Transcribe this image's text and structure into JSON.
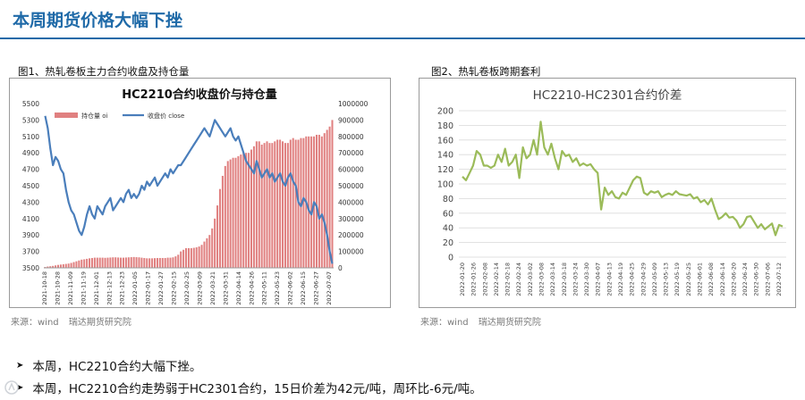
{
  "page": {
    "title": "本周期货价格大幅下挫"
  },
  "figures": {
    "left": {
      "caption": "图1、热轧卷板主力合约收盘及持仓量",
      "source_label": "来源：wind",
      "source_org": "瑞达期货研究院"
    },
    "right": {
      "caption": "图2、热轧卷板跨期套利",
      "source_label": "来源：wind",
      "source_org": "瑞达期货研究院"
    }
  },
  "bullets": [
    "本周，HC2210合约大幅下挫。",
    "本周，HC2210合约走势弱于HC2301合约，15日价差为42元/吨，周环比-6元/吨。"
  ],
  "colors": {
    "title_blue": "#1f6aa8",
    "close_line": "#4a7ebb",
    "oi_bar": "#e08080",
    "spread_line": "#9bbb59"
  },
  "chart_data": [
    {
      "type": "bar",
      "title": "HC2210合约收盘价与持仓量",
      "legend": {
        "position": "top-left",
        "items": [
          "持仓量 oi",
          "收盘价 close"
        ]
      },
      "y_left": {
        "ticks": [
          "3500",
          "3700",
          "3900",
          "4100",
          "4300",
          "4500",
          "4700",
          "4900",
          "5100",
          "5300",
          "5500"
        ],
        "ylim": [
          3500,
          5500
        ]
      },
      "y_right": {
        "ticks": [
          "0",
          "100000",
          "200000",
          "300000",
          "400000",
          "500000",
          "600000",
          "700000",
          "800000",
          "900000",
          "1000000"
        ],
        "ylim": [
          0,
          1000000
        ]
      },
      "x_ticks": [
        "2021-10-18",
        "2021-10-28",
        "2021-11-09",
        "2021-11-19",
        "2021-12-01",
        "2021-12-13",
        "2021-12-23",
        "2022-01-05",
        "2022-01-17",
        "2022-01-27",
        "2022-02-15",
        "2022-02-25",
        "2022-03-09",
        "2022-03-21",
        "2022-03-31",
        "2022-04-14",
        "2022-04-26",
        "2022-05-11",
        "2022-05-23",
        "2022-06-02",
        "2022-06-15",
        "2022-06-27",
        "2022-07-07"
      ],
      "grid": false,
      "series": [
        {
          "name": "持仓量 oi",
          "type": "bar",
          "axis": "right",
          "values": [
            5000,
            8000,
            10000,
            12000,
            15000,
            18000,
            20000,
            22000,
            24000,
            26000,
            30000,
            35000,
            40000,
            45000,
            50000,
            52000,
            55000,
            58000,
            60000,
            62000,
            62000,
            62000,
            62000,
            61000,
            62000,
            63000,
            64000,
            64000,
            63000,
            62000,
            62000,
            63000,
            64000,
            65000,
            66000,
            65000,
            64000,
            62000,
            60000,
            58000,
            58000,
            58000,
            59000,
            60000,
            60000,
            60000,
            60000,
            62000,
            62000,
            64000,
            70000,
            80000,
            100000,
            110000,
            120000,
            120000,
            120000,
            122000,
            125000,
            130000,
            140000,
            160000,
            180000,
            200000,
            240000,
            300000,
            380000,
            480000,
            560000,
            620000,
            650000,
            660000,
            670000,
            670000,
            680000,
            690000,
            700000,
            700000,
            700000,
            720000,
            740000,
            770000,
            770000,
            750000,
            760000,
            770000,
            760000,
            760000,
            770000,
            780000,
            780000,
            770000,
            760000,
            760000,
            780000,
            790000,
            780000,
            780000,
            790000,
            790000,
            800000,
            800000,
            800000,
            800000,
            810000,
            810000,
            800000,
            820000,
            840000,
            860000,
            900000
          ]
        },
        {
          "name": "收盘价 close",
          "type": "line",
          "axis": "left",
          "values": [
            5350,
            5200,
            4950,
            4750,
            4850,
            4800,
            4700,
            4650,
            4450,
            4300,
            4200,
            4150,
            4050,
            3950,
            3900,
            4000,
            4150,
            4250,
            4150,
            4100,
            4250,
            4200,
            4150,
            4250,
            4300,
            4350,
            4200,
            4250,
            4300,
            4350,
            4300,
            4400,
            4450,
            4350,
            4400,
            4350,
            4400,
            4500,
            4450,
            4550,
            4500,
            4550,
            4600,
            4500,
            4550,
            4600,
            4650,
            4600,
            4700,
            4650,
            4700,
            4750,
            4750,
            4800,
            4850,
            4900,
            4950,
            5000,
            5050,
            5100,
            5150,
            5200,
            5150,
            5100,
            5200,
            5300,
            5250,
            5200,
            5150,
            5100,
            5150,
            5200,
            5100,
            5050,
            5100,
            5000,
            4900,
            4800,
            4750,
            4700,
            4650,
            4800,
            4700,
            4600,
            4650,
            4700,
            4600,
            4650,
            4550,
            4600,
            4650,
            4550,
            4500,
            4600,
            4650,
            4550,
            4500,
            4300,
            4250,
            4350,
            4300,
            4200,
            4150,
            4300,
            4250,
            4100,
            4150,
            4050,
            3900,
            3700,
            3550
          ]
        }
      ]
    },
    {
      "type": "line",
      "title": "HC2210-HC2301合约价差",
      "y_ticks": [
        "0",
        "20",
        "40",
        "60",
        "80",
        "100",
        "120",
        "140",
        "160",
        "180",
        "200"
      ],
      "ylim": [
        0,
        200
      ],
      "x_ticks": [
        "2022-01-20",
        "2022-01-26",
        "2022-02-08",
        "2022-02-14",
        "2022-02-18",
        "2022-02-24",
        "2022-03-02",
        "2022-03-08",
        "2022-03-14",
        "2022-03-18",
        "2022-03-24",
        "2022-03-30",
        "2022-04-07",
        "2022-04-13",
        "2022-04-19",
        "2022-04-25",
        "2022-04-29",
        "2022-05-09",
        "2022-05-13",
        "2022-05-19",
        "2022-05-25",
        "2022-06-01",
        "2022-06-08",
        "2022-06-14",
        "2022-06-20",
        "2022-06-24",
        "2022-06-30",
        "2022-07-06",
        "2022-07-12"
      ],
      "grid": true,
      "series": [
        {
          "name": "",
          "values": [
            110,
            105,
            115,
            125,
            145,
            140,
            125,
            125,
            122,
            125,
            140,
            130,
            148,
            125,
            130,
            140,
            108,
            150,
            135,
            140,
            160,
            140,
            185,
            150,
            140,
            155,
            135,
            120,
            145,
            138,
            140,
            130,
            135,
            125,
            128,
            125,
            127,
            120,
            115,
            65,
            95,
            85,
            90,
            82,
            80,
            88,
            85,
            95,
            105,
            110,
            108,
            88,
            85,
            90,
            88,
            90,
            82,
            85,
            87,
            85,
            90,
            86,
            85,
            84,
            86,
            80,
            82,
            75,
            78,
            72,
            80,
            65,
            52,
            55,
            60,
            54,
            55,
            50,
            40,
            45,
            55,
            56,
            48,
            40,
            45,
            38,
            42,
            46,
            30,
            44,
            42
          ]
        }
      ]
    }
  ]
}
